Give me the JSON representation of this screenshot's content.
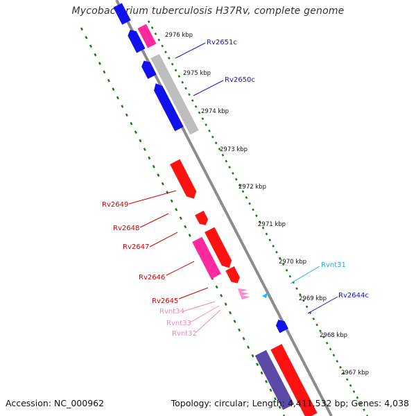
{
  "title": "Mycobacterium tuberculosis H37Rv, complete genome",
  "footer": {
    "accession": "Accession: NC_000962",
    "summary": "Topology: circular; Length: 4,411,532 bp; Genes: 4,038"
  },
  "colors": {
    "backbone": "#8c8c8c",
    "tick": "#1a7a1a",
    "forward_gene": "#ff1111",
    "forward_gene_alt": "#ff2aa0",
    "reverse_gene": "#1111ee",
    "reverse_gene_alt": "#5a4aa6",
    "rna_gene": "#ff88cc",
    "trna_gene": "#22bbee",
    "grey_gene": "#bdbdbd"
  },
  "kbp_labels": [
    "2976 kbp",
    "2975 kbp",
    "2974 kbp",
    "2973 kbp",
    "2972 kbp",
    "2971 kbp",
    "2970 kbp",
    "2969 kbp",
    "2968 kbp",
    "2967 kbp"
  ],
  "gene_labels": [
    {
      "name": "Rv2651c",
      "color": "#1111cc"
    },
    {
      "name": "Rv2650c",
      "color": "#1111cc"
    },
    {
      "name": "Rv2649",
      "color": "#cc0000"
    },
    {
      "name": "Rv2648",
      "color": "#cc0000"
    },
    {
      "name": "Rv2647",
      "color": "#cc0000"
    },
    {
      "name": "Rv2646",
      "color": "#cc0000"
    },
    {
      "name": "Rv2645",
      "color": "#cc0000"
    },
    {
      "name": "Rvnt34",
      "color": "#ee88bb"
    },
    {
      "name": "Rvnt33",
      "color": "#ee88bb"
    },
    {
      "name": "Rvnt32",
      "color": "#ee88bb"
    },
    {
      "name": "Rvnt31",
      "color": "#22aadd"
    },
    {
      "name": "Rv2644c",
      "color": "#1111cc"
    }
  ]
}
